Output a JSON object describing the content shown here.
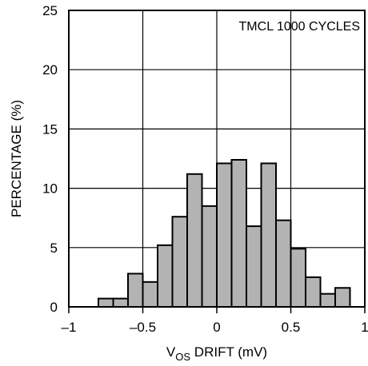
{
  "chart_data": {
    "type": "bar",
    "annotation": "TMCL 1000 CYCLES",
    "xlabel_main": "V",
    "xlabel_sub": "OS",
    "xlabel_rest": " DRIFT (mV)",
    "ylabel": "PERCENTAGE (%)",
    "xlim": [
      -1,
      1
    ],
    "ylim": [
      0,
      25
    ],
    "xticks": [
      -1,
      -0.5,
      0,
      0.5,
      1
    ],
    "xtick_labels": [
      "–1",
      "–0.5",
      "0",
      "0.5",
      "1"
    ],
    "yticks": [
      0,
      5,
      10,
      15,
      20,
      25
    ],
    "ytick_labels": [
      "0",
      "5",
      "10",
      "15",
      "20",
      "25"
    ],
    "grid": true,
    "bin_width": 0.1,
    "bin_starts": [
      -0.8,
      -0.7,
      -0.6,
      -0.5,
      -0.4,
      -0.3,
      -0.2,
      -0.1,
      0.0,
      0.1,
      0.2,
      0.3,
      0.4,
      0.5,
      0.6,
      0.7,
      0.8
    ],
    "values": [
      0.7,
      0.7,
      2.8,
      2.1,
      5.2,
      7.6,
      11.2,
      8.5,
      12.1,
      12.4,
      6.8,
      12.1,
      7.3,
      4.9,
      2.5,
      1.1,
      1.6
    ],
    "bar_color": "#b3b3b3"
  }
}
